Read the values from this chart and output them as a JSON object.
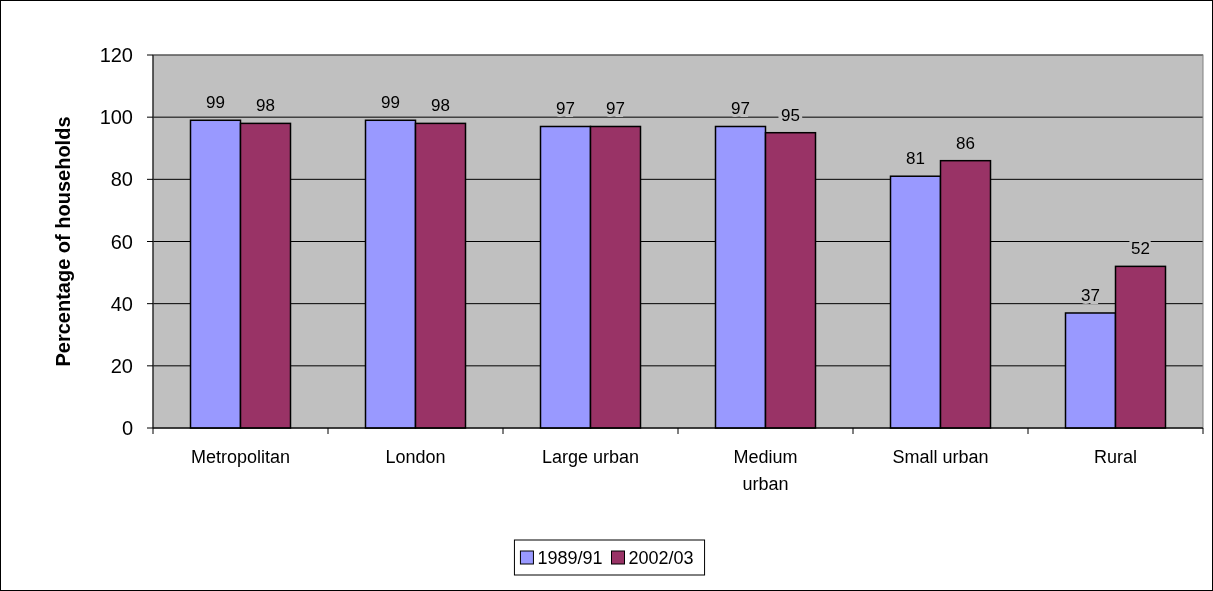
{
  "chart_data": {
    "type": "bar",
    "ylabel": "Percentage of households",
    "categories": [
      "Metropolitan",
      "London",
      "Large urban",
      "Medium urban",
      "Small urban",
      "Rural"
    ],
    "series": [
      {
        "name": "1989/91",
        "color": "#9999ff",
        "values": [
          99,
          99,
          97,
          97,
          81,
          37
        ]
      },
      {
        "name": "2002/03",
        "color": "#993366",
        "values": [
          98,
          98,
          97,
          95,
          86,
          52
        ]
      }
    ],
    "ylim": [
      0,
      120
    ],
    "yticks": [
      0,
      20,
      40,
      60,
      80,
      100,
      120
    ],
    "grid": "y",
    "data_labels": true,
    "legend": "bottom"
  }
}
